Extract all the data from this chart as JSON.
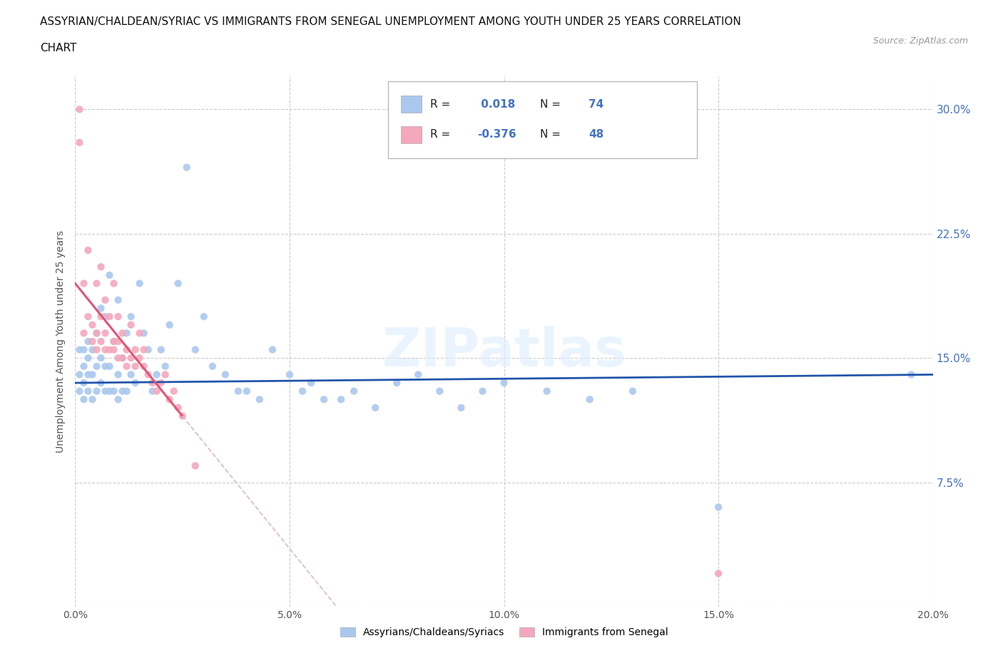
{
  "title_line1": "ASSYRIAN/CHALDEAN/SYRIAC VS IMMIGRANTS FROM SENEGAL UNEMPLOYMENT AMONG YOUTH UNDER 25 YEARS CORRELATION",
  "title_line2": "CHART",
  "source_text": "Source: ZipAtlas.com",
  "ylabel": "Unemployment Among Youth under 25 years",
  "xlim": [
    0.0,
    0.2
  ],
  "ylim": [
    0.0,
    0.32
  ],
  "series1_color": "#aac8ee",
  "series2_color": "#f4a8bc",
  "series1_line_color": "#2255aa",
  "series2_line_color": "#e05575",
  "series2_line_ext_color": "#ddbbcc",
  "R1": 0.018,
  "N1": 74,
  "R2": -0.376,
  "N2": 48,
  "legend_label1": "Assyrians/Chaldeans/Syriacs",
  "legend_label2": "Immigrants from Senegal",
  "watermark": "ZIPatlas",
  "series1_x": [
    0.001,
    0.001,
    0.001,
    0.002,
    0.002,
    0.002,
    0.002,
    0.003,
    0.003,
    0.003,
    0.003,
    0.004,
    0.004,
    0.004,
    0.005,
    0.005,
    0.005,
    0.006,
    0.006,
    0.006,
    0.007,
    0.007,
    0.007,
    0.008,
    0.008,
    0.008,
    0.009,
    0.009,
    0.01,
    0.01,
    0.01,
    0.011,
    0.011,
    0.012,
    0.012,
    0.013,
    0.013,
    0.014,
    0.015,
    0.016,
    0.017,
    0.018,
    0.019,
    0.02,
    0.021,
    0.022,
    0.024,
    0.026,
    0.028,
    0.03,
    0.032,
    0.035,
    0.038,
    0.04,
    0.043,
    0.046,
    0.05,
    0.053,
    0.055,
    0.058,
    0.062,
    0.065,
    0.07,
    0.075,
    0.08,
    0.085,
    0.09,
    0.095,
    0.1,
    0.11,
    0.12,
    0.13,
    0.15,
    0.195
  ],
  "series1_y": [
    0.13,
    0.14,
    0.155,
    0.125,
    0.135,
    0.145,
    0.155,
    0.13,
    0.14,
    0.15,
    0.16,
    0.125,
    0.14,
    0.155,
    0.13,
    0.145,
    0.165,
    0.135,
    0.15,
    0.18,
    0.13,
    0.145,
    0.175,
    0.13,
    0.145,
    0.2,
    0.13,
    0.16,
    0.125,
    0.14,
    0.185,
    0.13,
    0.15,
    0.13,
    0.165,
    0.14,
    0.175,
    0.135,
    0.195,
    0.165,
    0.155,
    0.13,
    0.14,
    0.155,
    0.145,
    0.17,
    0.195,
    0.265,
    0.155,
    0.175,
    0.145,
    0.14,
    0.13,
    0.13,
    0.125,
    0.155,
    0.14,
    0.13,
    0.135,
    0.125,
    0.125,
    0.13,
    0.12,
    0.135,
    0.14,
    0.13,
    0.12,
    0.13,
    0.135,
    0.13,
    0.125,
    0.13,
    0.06,
    0.14
  ],
  "series2_x": [
    0.001,
    0.001,
    0.002,
    0.002,
    0.003,
    0.003,
    0.004,
    0.004,
    0.005,
    0.005,
    0.005,
    0.006,
    0.006,
    0.006,
    0.007,
    0.007,
    0.007,
    0.008,
    0.008,
    0.009,
    0.009,
    0.009,
    0.01,
    0.01,
    0.01,
    0.011,
    0.011,
    0.012,
    0.012,
    0.013,
    0.013,
    0.014,
    0.014,
    0.015,
    0.015,
    0.016,
    0.016,
    0.017,
    0.018,
    0.019,
    0.02,
    0.021,
    0.022,
    0.023,
    0.024,
    0.025,
    0.028,
    0.15
  ],
  "series2_y": [
    0.3,
    0.28,
    0.195,
    0.165,
    0.175,
    0.215,
    0.17,
    0.16,
    0.155,
    0.165,
    0.195,
    0.16,
    0.175,
    0.205,
    0.155,
    0.165,
    0.185,
    0.155,
    0.175,
    0.155,
    0.16,
    0.195,
    0.15,
    0.16,
    0.175,
    0.15,
    0.165,
    0.155,
    0.145,
    0.15,
    0.17,
    0.145,
    0.155,
    0.15,
    0.165,
    0.145,
    0.155,
    0.14,
    0.135,
    0.13,
    0.135,
    0.14,
    0.125,
    0.13,
    0.12,
    0.115,
    0.085,
    0.02
  ],
  "pink_line_xmax": 0.025,
  "pink_line_x0y": 0.195,
  "pink_line_x025y": 0.115,
  "blue_line_x0y": 0.135,
  "blue_line_x20y": 0.14
}
